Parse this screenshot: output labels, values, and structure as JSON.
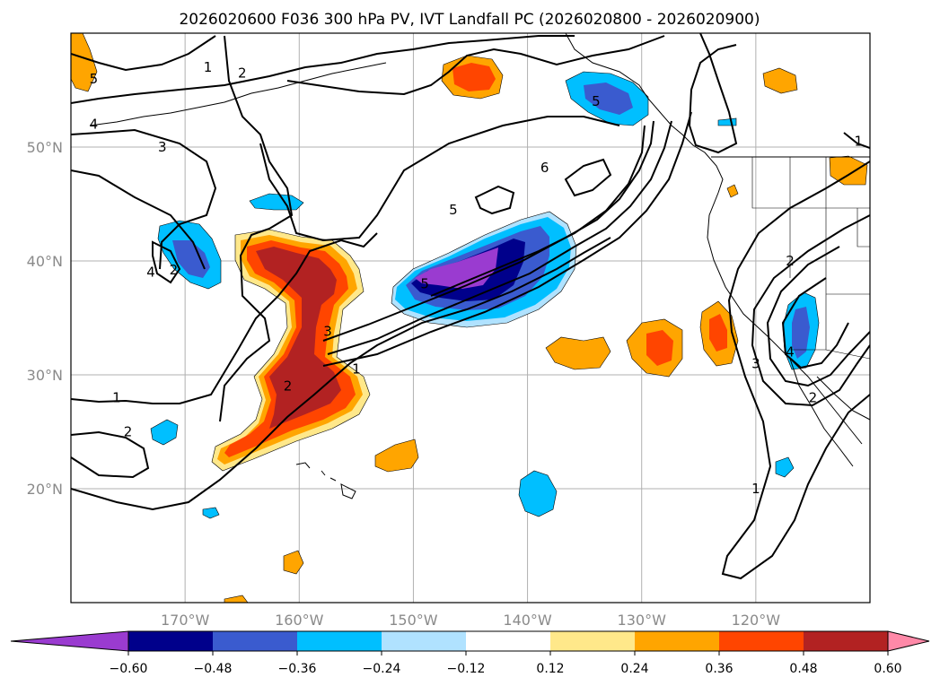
{
  "chart_data": {
    "type": "map",
    "title": "2026020600 F036 300 hPa PV, IVT Landfall PC (2026020800 - 2026020900)",
    "x_axis": {
      "range": [
        -180,
        -110
      ],
      "ticks": [
        -170,
        -160,
        -150,
        -140,
        -130,
        -120
      ],
      "tick_labels": [
        "170°W",
        "160°W",
        "150°W",
        "140°W",
        "130°W",
        "120°W"
      ]
    },
    "y_axis": {
      "range": [
        10,
        60
      ],
      "ticks": [
        20,
        30,
        40,
        50
      ],
      "tick_labels": [
        "20°N",
        "30°N",
        "40°N",
        "50°N"
      ]
    },
    "grid": true,
    "colorbar": {
      "orientation": "horizontal",
      "extend": "both",
      "boundaries": [
        -0.6,
        -0.48,
        -0.36,
        -0.24,
        -0.12,
        0.12,
        0.24,
        0.36,
        0.48,
        0.6
      ],
      "tick_labels": [
        "−0.60",
        "−0.48",
        "−0.36",
        "−0.24",
        "−0.12",
        "0.12",
        "0.24",
        "0.36",
        "0.48",
        "0.60"
      ],
      "colors": [
        "#9a3bd0",
        "#00008b",
        "#3a5bcf",
        "#00bfff",
        "#b0e2ff",
        "#ffffff",
        "#ffe88a",
        "#ffa500",
        "#ff4500",
        "#b22222",
        "#ff89a8"
      ]
    },
    "contour_labels": [
      {
        "text": "1",
        "lon": -176.0,
        "lat": 28.0
      },
      {
        "text": "2",
        "lon": -175.0,
        "lat": 25.0
      },
      {
        "text": "1",
        "lon": -168.0,
        "lat": 57.0
      },
      {
        "text": "2",
        "lon": -165.0,
        "lat": 56.5
      },
      {
        "text": "4",
        "lon": -178.0,
        "lat": 52.0
      },
      {
        "text": "3",
        "lon": -172.0,
        "lat": 50.0
      },
      {
        "text": "5",
        "lon": -178.0,
        "lat": 56.0
      },
      {
        "text": "2",
        "lon": -171.0,
        "lat": 39.2
      },
      {
        "text": "4",
        "lon": -173.0,
        "lat": 39.0
      },
      {
        "text": "2",
        "lon": -161.0,
        "lat": 29.0
      },
      {
        "text": "3",
        "lon": -157.5,
        "lat": 33.8
      },
      {
        "text": "1",
        "lon": -155.0,
        "lat": 30.5
      },
      {
        "text": "5",
        "lon": -146.5,
        "lat": 44.5
      },
      {
        "text": "6",
        "lon": -138.5,
        "lat": 48.2
      },
      {
        "text": "5",
        "lon": -149.0,
        "lat": 38.0
      },
      {
        "text": "5",
        "lon": -134.0,
        "lat": 54.0
      },
      {
        "text": "2",
        "lon": -117.0,
        "lat": 40.0
      },
      {
        "text": "3",
        "lon": -120.0,
        "lat": 31.0
      },
      {
        "text": "4",
        "lon": -117.0,
        "lat": 32.0
      },
      {
        "text": "2",
        "lon": -115.0,
        "lat": 28.0
      },
      {
        "text": "1",
        "lon": -120.0,
        "lat": 20.0
      },
      {
        "text": "1",
        "lon": -111.0,
        "lat": 50.5
      }
    ]
  }
}
